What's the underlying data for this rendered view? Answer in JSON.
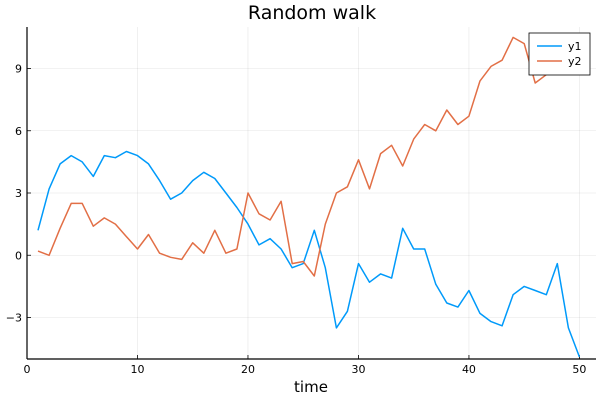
{
  "chart_data": {
    "type": "line",
    "title": "Random walk",
    "xlabel": "time",
    "ylabel": "",
    "xlim": [
      0,
      51.5
    ],
    "ylim": [
      -5,
      11
    ],
    "xticks": [
      0,
      10,
      20,
      30,
      40,
      50
    ],
    "yticks": [
      -3,
      0,
      3,
      6,
      9
    ],
    "ytick_labels": [
      "−3",
      "0",
      "3",
      "6",
      "9"
    ],
    "grid": true,
    "legend_position": "top-right",
    "x": [
      1,
      2,
      3,
      4,
      5,
      6,
      7,
      8,
      9,
      10,
      11,
      12,
      13,
      14,
      15,
      16,
      17,
      18,
      19,
      20,
      21,
      22,
      23,
      24,
      25,
      26,
      27,
      28,
      29,
      30,
      31,
      32,
      33,
      34,
      35,
      36,
      37,
      38,
      39,
      40,
      41,
      42,
      43,
      44,
      45,
      46,
      47,
      48,
      49,
      50
    ],
    "series": [
      {
        "name": "y1",
        "color": "#009AFA",
        "values": [
          1.2,
          3.2,
          4.4,
          4.8,
          4.5,
          3.8,
          4.8,
          4.7,
          5.0,
          4.8,
          4.4,
          3.6,
          2.7,
          3.0,
          3.6,
          4.0,
          3.7,
          3.0,
          2.3,
          1.5,
          0.5,
          0.8,
          0.3,
          -0.6,
          -0.4,
          1.2,
          -0.6,
          -3.5,
          -2.7,
          -0.4,
          -1.3,
          -0.9,
          -1.1,
          1.3,
          0.3,
          0.3,
          -1.4,
          -2.3,
          -2.5,
          -1.7,
          -2.8,
          -3.2,
          -3.4,
          -1.9,
          -1.5,
          -1.7,
          -1.9,
          -0.4,
          -3.5,
          -4.9
        ]
      },
      {
        "name": "y2",
        "color": "#E26F46",
        "values": [
          0.2,
          0.0,
          1.3,
          2.5,
          2.5,
          1.4,
          1.8,
          1.5,
          0.9,
          0.3,
          1.0,
          0.1,
          -0.1,
          -0.2,
          0.6,
          0.1,
          1.2,
          0.1,
          0.3,
          3.0,
          2.0,
          1.7,
          2.6,
          -0.4,
          -0.3,
          -1.0,
          1.5,
          3.0,
          3.3,
          4.6,
          3.2,
          4.9,
          5.3,
          4.3,
          5.6,
          6.3,
          6.0,
          7.0,
          6.3,
          6.7,
          8.4,
          9.1,
          9.4,
          10.5,
          10.2,
          8.3,
          8.7,
          9.4,
          9.5,
          9.3
        ]
      }
    ]
  }
}
